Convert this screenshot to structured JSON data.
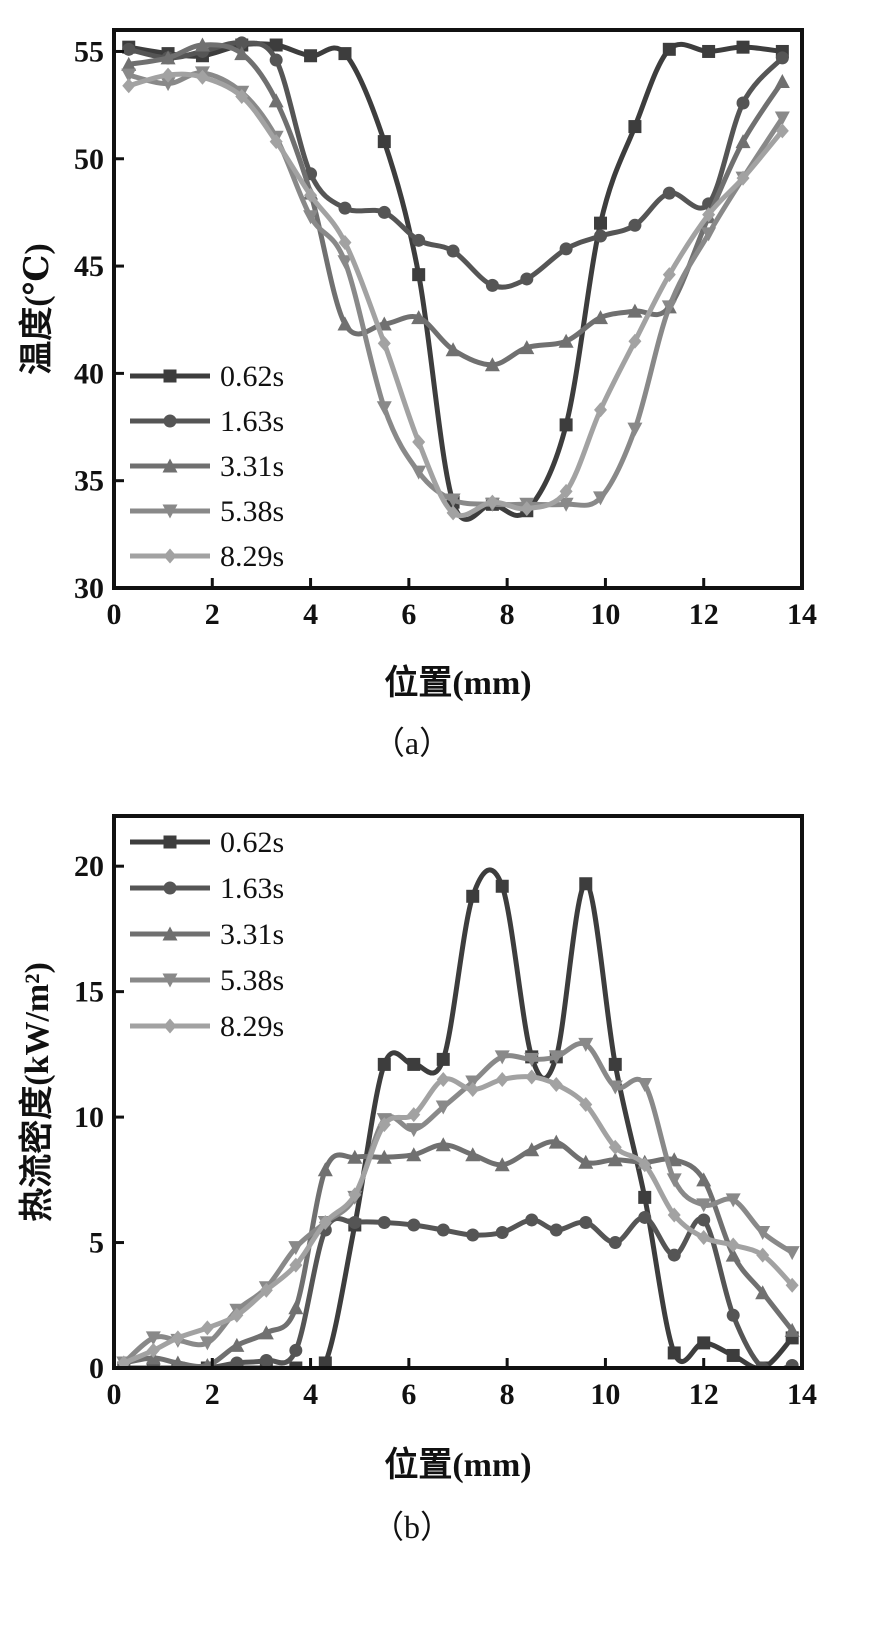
{
  "colors": {
    "0.62s": "#3d3d3d",
    "1.63s": "#555555",
    "3.31s": "#707070",
    "5.38s": "#898989",
    "8.29s": "#a2a2a2",
    "axis": "#111111"
  },
  "markers": {
    "0.62s": "square",
    "1.63s": "circle",
    "3.31s": "triangle-up",
    "5.38s": "triangle-down",
    "8.29s": "diamond"
  },
  "chart_data": [
    {
      "type": "line",
      "panel_label": "（a）",
      "xlabel": "位置(mm)",
      "ylabel": "温度(℃)",
      "xlim": [
        0,
        14
      ],
      "ylim": [
        30,
        56
      ],
      "xticks": [
        0,
        2,
        4,
        6,
        8,
        10,
        12,
        14
      ],
      "yticks": [
        30,
        35,
        40,
        45,
        50,
        55
      ],
      "legend_position": "left-middle",
      "grid": false,
      "series": [
        {
          "name": "0.62s",
          "x": [
            0.3,
            1.1,
            1.8,
            2.6,
            3.3,
            4.0,
            4.7,
            5.5,
            6.2,
            6.9,
            7.7,
            8.4,
            9.2,
            9.9,
            10.6,
            11.3,
            12.1,
            12.8,
            13.6
          ],
          "y": [
            55.2,
            54.9,
            54.8,
            55.3,
            55.3,
            54.8,
            54.9,
            50.8,
            44.6,
            34.0,
            33.9,
            33.6,
            37.6,
            47.0,
            51.5,
            55.1,
            55.0,
            55.2,
            55.0
          ]
        },
        {
          "name": "1.63s",
          "x": [
            0.3,
            1.1,
            1.8,
            2.6,
            3.3,
            4.0,
            4.7,
            5.5,
            6.2,
            6.9,
            7.7,
            8.4,
            9.2,
            9.9,
            10.6,
            11.3,
            12.1,
            12.8,
            13.6
          ],
          "y": [
            55.1,
            54.7,
            55.0,
            55.4,
            54.6,
            49.3,
            47.7,
            47.5,
            46.2,
            45.7,
            44.1,
            44.4,
            45.8,
            46.4,
            46.9,
            48.4,
            47.9,
            52.6,
            54.7
          ]
        },
        {
          "name": "3.31s",
          "x": [
            0.3,
            1.1,
            1.8,
            2.6,
            3.3,
            4.0,
            4.7,
            5.5,
            6.2,
            6.9,
            7.7,
            8.4,
            9.2,
            9.9,
            10.6,
            11.3,
            12.1,
            12.8,
            13.6
          ],
          "y": [
            54.4,
            54.7,
            55.3,
            54.9,
            52.7,
            48.4,
            42.3,
            42.3,
            42.6,
            41.1,
            40.4,
            41.2,
            41.5,
            42.6,
            42.9,
            43.1,
            47.3,
            50.8,
            53.6
          ]
        },
        {
          "name": "5.38s",
          "x": [
            0.3,
            1.1,
            1.8,
            2.6,
            3.3,
            4.0,
            4.7,
            5.5,
            6.2,
            6.9,
            7.7,
            8.4,
            9.2,
            9.9,
            10.6,
            11.3,
            12.1,
            12.8,
            13.6
          ],
          "y": [
            53.9,
            53.5,
            54.0,
            53.1,
            51.0,
            47.3,
            45.2,
            38.4,
            35.4,
            34.1,
            33.9,
            33.9,
            33.9,
            34.2,
            37.4,
            43.1,
            46.5,
            49.1,
            51.9
          ]
        },
        {
          "name": "8.29s",
          "x": [
            0.3,
            1.1,
            1.8,
            2.6,
            3.3,
            4.0,
            4.7,
            5.5,
            6.2,
            6.9,
            7.7,
            8.4,
            9.2,
            9.9,
            10.6,
            11.3,
            12.1,
            12.8,
            13.6
          ],
          "y": [
            53.4,
            53.9,
            53.8,
            52.9,
            50.8,
            48.3,
            46.1,
            41.4,
            36.8,
            33.5,
            34.0,
            33.7,
            34.5,
            38.3,
            41.5,
            44.6,
            47.4,
            49.1,
            51.3
          ]
        }
      ]
    },
    {
      "type": "line",
      "panel_label": "（b）",
      "xlabel": "位置(mm)",
      "ylabel": "热流密度(kW/m²)",
      "xlim": [
        0,
        14
      ],
      "ylim": [
        0,
        22
      ],
      "xticks": [
        0,
        2,
        4,
        6,
        8,
        10,
        12,
        14
      ],
      "yticks": [
        0,
        5,
        10,
        15,
        20
      ],
      "legend_position": "top-left",
      "grid": false,
      "series": [
        {
          "name": "0.62s",
          "x": [
            0.2,
            0.8,
            1.3,
            1.9,
            2.5,
            3.1,
            3.7,
            4.3,
            4.9,
            5.5,
            6.1,
            6.7,
            7.3,
            7.9,
            8.5,
            9.0,
            9.6,
            10.2,
            10.8,
            11.4,
            12.0,
            12.6,
            13.2,
            13.8
          ],
          "y": [
            0,
            0,
            0,
            0,
            0,
            0,
            0,
            0.2,
            5.7,
            12.1,
            12.1,
            12.3,
            18.8,
            19.2,
            12.4,
            12.4,
            19.3,
            12.1,
            6.8,
            0.6,
            1.0,
            0.5,
            0,
            1.2
          ]
        },
        {
          "name": "1.63s",
          "x": [
            0.2,
            0.8,
            1.3,
            1.9,
            2.5,
            3.1,
            3.7,
            4.3,
            4.9,
            5.5,
            6.1,
            6.7,
            7.3,
            7.9,
            8.5,
            9.0,
            9.6,
            10.2,
            10.8,
            11.4,
            12.0,
            12.6,
            13.2,
            13.8
          ],
          "y": [
            0,
            0,
            0,
            0,
            0.2,
            0.3,
            0.7,
            5.5,
            5.8,
            5.8,
            5.7,
            5.5,
            5.3,
            5.4,
            5.9,
            5.5,
            5.8,
            5.0,
            6.0,
            4.5,
            5.9,
            2.1,
            0,
            0.1
          ]
        },
        {
          "name": "3.31s",
          "x": [
            0.2,
            0.8,
            1.3,
            1.9,
            2.5,
            3.1,
            3.7,
            4.3,
            4.9,
            5.5,
            6.1,
            6.7,
            7.3,
            7.9,
            8.5,
            9.0,
            9.6,
            10.2,
            10.8,
            11.4,
            12.0,
            12.6,
            13.2,
            13.8
          ],
          "y": [
            0.2,
            0.4,
            0.2,
            0.1,
            0.9,
            1.4,
            2.4,
            7.9,
            8.4,
            8.4,
            8.5,
            8.9,
            8.5,
            8.1,
            8.7,
            9.0,
            8.2,
            8.3,
            8.2,
            8.3,
            7.5,
            4.5,
            3.0,
            1.5
          ]
        },
        {
          "name": "5.38s",
          "x": [
            0.2,
            0.8,
            1.3,
            1.9,
            2.5,
            3.1,
            3.7,
            4.3,
            4.9,
            5.5,
            6.1,
            6.7,
            7.3,
            7.9,
            8.5,
            9.0,
            9.6,
            10.2,
            10.8,
            11.4,
            12.0,
            12.6,
            13.2,
            13.8
          ],
          "y": [
            0.2,
            1.2,
            1.1,
            1.0,
            2.3,
            3.2,
            4.8,
            5.8,
            6.8,
            9.9,
            9.5,
            10.4,
            11.4,
            12.4,
            12.3,
            12.4,
            12.9,
            11.2,
            11.3,
            7.5,
            6.5,
            6.7,
            5.4,
            4.6
          ]
        },
        {
          "name": "8.29s",
          "x": [
            0.2,
            0.8,
            1.3,
            1.9,
            2.5,
            3.1,
            3.7,
            4.3,
            4.9,
            5.5,
            6.1,
            6.7,
            7.3,
            7.9,
            8.5,
            9.0,
            9.6,
            10.2,
            10.8,
            11.4,
            12.0,
            12.6,
            13.2,
            13.8
          ],
          "y": [
            0.2,
            0.7,
            1.2,
            1.6,
            2.1,
            3.1,
            4.1,
            5.8,
            6.9,
            9.7,
            10.1,
            11.5,
            11.1,
            11.5,
            11.6,
            11.3,
            10.5,
            8.8,
            8.1,
            6.1,
            5.2,
            4.9,
            4.5,
            3.3
          ]
        }
      ]
    }
  ]
}
